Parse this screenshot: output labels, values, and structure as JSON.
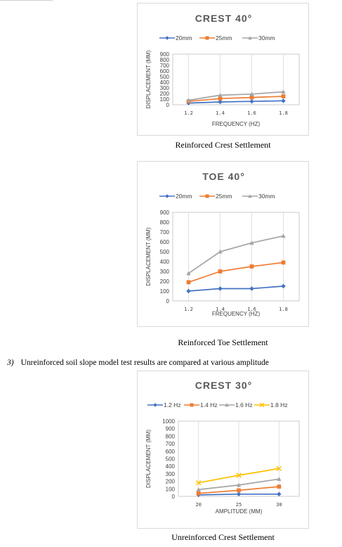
{
  "captions": {
    "fig1": "Reinforced Crest Settlement",
    "fig2": "Reinforced Toe Settlement",
    "fig3": "Unreinforced Crest Settlement"
  },
  "section": {
    "number": "3)",
    "text": "Unreinforced soil slope model test results are compared at various amplitude"
  },
  "colors": {
    "blue": "#4472c4",
    "orange": "#ed7d31",
    "gray": "#a5a5a5",
    "yellow": "#ffc000"
  },
  "chart_data": [
    {
      "type": "line",
      "title": "CREST 40°",
      "xlabel": "FREQUENCY (HZ)",
      "ylabel": "DISPLACEMENT (MM)",
      "x": [
        1.2,
        1.4,
        1.6,
        1.8
      ],
      "xticks": [
        "1.2",
        "1.4",
        "1.6",
        "1.8"
      ],
      "xlim": [
        1.1,
        1.9
      ],
      "ylim": [
        0,
        900
      ],
      "yticks": [
        "0",
        "100",
        "200",
        "300",
        "400",
        "500",
        "600",
        "700",
        "800",
        "900"
      ],
      "grid": "vertical",
      "legend": "top",
      "series": [
        {
          "name": "20mm",
          "color": "#4472c4",
          "marker": "diamond",
          "values": [
            30,
            50,
            60,
            70
          ]
        },
        {
          "name": "25mm",
          "color": "#ed7d31",
          "marker": "square",
          "values": [
            60,
            110,
            130,
            150
          ]
        },
        {
          "name": "30mm",
          "color": "#a5a5a5",
          "marker": "triangle",
          "values": [
            80,
            170,
            190,
            230
          ]
        }
      ]
    },
    {
      "type": "line",
      "title": "TOE 40°",
      "xlabel": "FREQUENCY (HZ)",
      "ylabel": "DISPLACEMENT (MM)",
      "x": [
        1.2,
        1.4,
        1.6,
        1.8
      ],
      "xticks": [
        "1.2",
        "1.4",
        "1.6",
        "1.8"
      ],
      "xlim": [
        1.1,
        1.9
      ],
      "ylim": [
        0,
        900
      ],
      "yticks": [
        "0",
        "100",
        "200",
        "300",
        "400",
        "500",
        "600",
        "700",
        "800",
        "900"
      ],
      "grid": "vertical",
      "legend": "top",
      "series": [
        {
          "name": "20mm",
          "color": "#4472c4",
          "marker": "diamond",
          "values": [
            100,
            125,
            125,
            150
          ]
        },
        {
          "name": "25mm",
          "color": "#ed7d31",
          "marker": "square",
          "values": [
            190,
            300,
            350,
            390
          ]
        },
        {
          "name": "30mm",
          "color": "#a5a5a5",
          "marker": "triangle",
          "values": [
            280,
            500,
            590,
            660
          ]
        }
      ]
    },
    {
      "type": "line",
      "title": "CREST 30°",
      "xlabel": "AMPLITUDE (MM)",
      "ylabel": "DISPLACEMENT (MM)",
      "x": [
        20,
        25,
        30
      ],
      "xticks": [
        "20",
        "25",
        "30"
      ],
      "xlim": [
        17.5,
        32.5
      ],
      "ylim": [
        0,
        1000
      ],
      "yticks": [
        "0",
        "100",
        "200",
        "300",
        "400",
        "500",
        "600",
        "700",
        "800",
        "900",
        "1000"
      ],
      "grid": "vertical",
      "legend": "top",
      "series": [
        {
          "name": "1.2 Hz",
          "color": "#4472c4",
          "marker": "diamond",
          "values": [
            20,
            30,
            30
          ]
        },
        {
          "name": "1.4 Hz",
          "color": "#ed7d31",
          "marker": "square",
          "values": [
            40,
            80,
            130
          ]
        },
        {
          "name": "1.6 Hz",
          "color": "#a5a5a5",
          "marker": "triangle",
          "values": [
            90,
            150,
            230
          ]
        },
        {
          "name": "1.8 Hz",
          "color": "#ffc000",
          "marker": "x",
          "values": [
            180,
            280,
            370
          ]
        }
      ]
    }
  ]
}
